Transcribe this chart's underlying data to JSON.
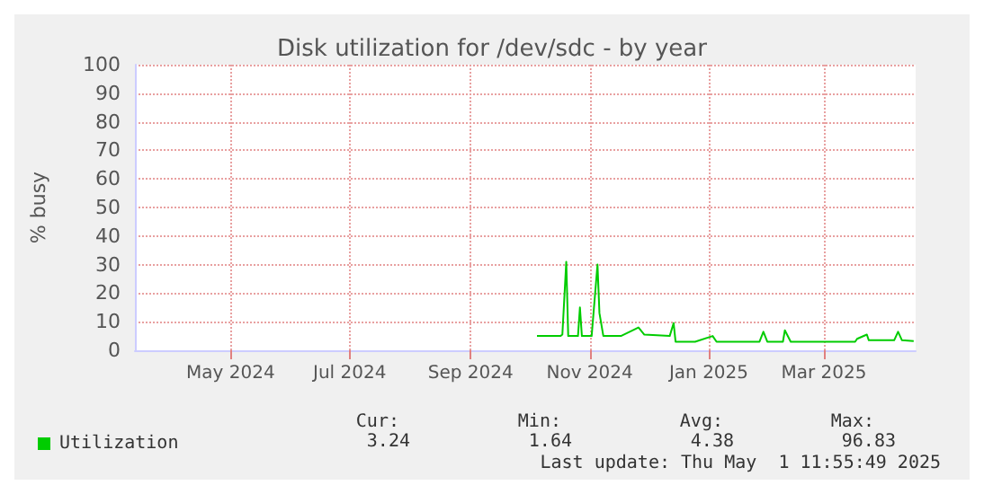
{
  "chart_data": {
    "type": "line",
    "title": "Disk utilization for /dev/sdc - by year",
    "ylabel": "% busy",
    "x": [
      "2024-10-19",
      "2024-10-31",
      "2024-11-01",
      "2024-11-03",
      "2024-11-04",
      "2024-11-09",
      "2024-11-10",
      "2024-11-11",
      "2024-11-16",
      "2024-11-19",
      "2024-11-20",
      "2024-11-22",
      "2024-12-01",
      "2024-12-10",
      "2024-12-13",
      "2024-12-26",
      "2024-12-28",
      "2024-12-29",
      "2025-01-08",
      "2025-01-17",
      "2025-01-19",
      "2025-02-10",
      "2025-02-12",
      "2025-02-14",
      "2025-02-22",
      "2025-02-23",
      "2025-02-26",
      "2025-03-31",
      "2025-04-01",
      "2025-04-06",
      "2025-04-07",
      "2025-04-20",
      "2025-04-22",
      "2025-04-24",
      "2025-04-30"
    ],
    "series": [
      {
        "name": "Utilization",
        "color": "#00cc00",
        "values": [
          5,
          5,
          5.5,
          31,
          5,
          5,
          15,
          5,
          5,
          30,
          13,
          5,
          5,
          8,
          5.5,
          5,
          9.5,
          3,
          3,
          5,
          3,
          3,
          6.5,
          3,
          3,
          7,
          3,
          3,
          4,
          5.5,
          3.5,
          3.5,
          6.5,
          3.5,
          3.24
        ]
      }
    ],
    "xlim": [
      "2024-03-27",
      "2025-05-01"
    ],
    "xticks": [
      {
        "value": "2024-05-15",
        "label": "May 2024"
      },
      {
        "value": "2024-07-15",
        "label": "Jul 2024"
      },
      {
        "value": "2024-09-15",
        "label": "Sep 2024"
      },
      {
        "value": "2024-11-15",
        "label": "Nov 2024"
      },
      {
        "value": "2025-01-15",
        "label": "Jan 2025"
      },
      {
        "value": "2025-03-15",
        "label": "Mar 2025"
      }
    ],
    "ylim": [
      0,
      100
    ],
    "yticks": [
      0,
      10,
      20,
      30,
      40,
      50,
      60,
      70,
      80,
      90,
      100
    ],
    "grid": true,
    "legend": "bottom left",
    "marker": "none",
    "line_style": "solid",
    "annotations": [
      "Cur:",
      "Min:",
      "Avg:",
      "Max:",
      "3.24",
      "1.64",
      "4.38",
      "96.83",
      "Last update: Thu May  1 11:55:49 2025"
    ]
  }
}
